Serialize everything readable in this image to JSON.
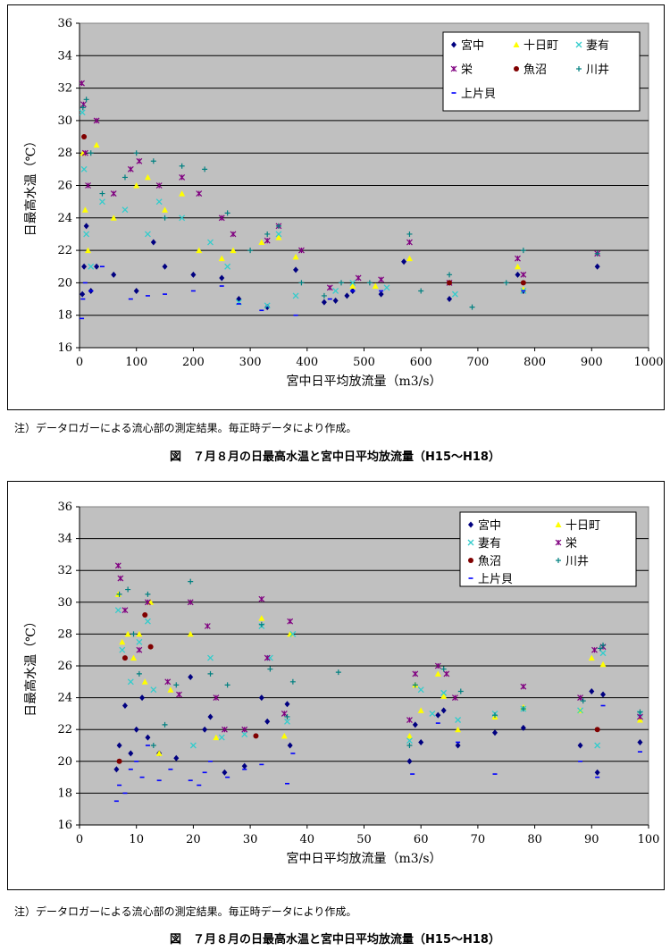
{
  "colors": {
    "plot_bg": "#c0c0c0",
    "miyanaka": "#000080",
    "tokamachi": "#ffff00",
    "tsumari": "#33cccc",
    "sakae": "#800080",
    "uonuma": "#800000",
    "kawai": "#008080",
    "kamikatagai": "#0000ff"
  },
  "note_text": "注）データロガーによる流心部の測定結果。毎正時データにより作成。",
  "chart_data": [
    {
      "type": "scatter",
      "title": "図　７月８月の日最高水温と宮中日平均放流量（H15～H18）",
      "xlabel": "宮中日平均放流量（m3/s）",
      "ylabel": "日最高水温（℃）",
      "xlim": [
        0,
        1000
      ],
      "ylim": [
        16,
        36
      ],
      "xticks": [
        "0",
        "100",
        "200",
        "300",
        "400",
        "500",
        "600",
        "700",
        "800",
        "900",
        "1000"
      ],
      "yticks": [
        "16",
        "18",
        "20",
        "22",
        "24",
        "26",
        "28",
        "30",
        "32",
        "34",
        "36"
      ],
      "grid": true,
      "legend_position": "top-right",
      "legend_columns": 3,
      "series": [
        {
          "name": "宮中",
          "marker": "diamond",
          "x": [
            5,
            8,
            12,
            20,
            30,
            60,
            100,
            130,
            150,
            200,
            250,
            280,
            330,
            380,
            430,
            450,
            470,
            480,
            530,
            570,
            650,
            770,
            780,
            910
          ],
          "y": [
            19.3,
            21.0,
            23.5,
            19.5,
            21.0,
            20.5,
            19.5,
            22.5,
            21.0,
            20.5,
            20.3,
            19.0,
            18.5,
            20.8,
            18.8,
            18.9,
            19.2,
            19.5,
            19.3,
            21.3,
            19.0,
            20.5,
            19.5,
            21.0
          ]
        },
        {
          "name": "十日町",
          "marker": "triangle",
          "x": [
            6,
            10,
            15,
            30,
            60,
            100,
            120,
            150,
            180,
            210,
            250,
            270,
            320,
            350,
            380,
            480,
            520,
            580,
            770,
            780
          ],
          "y": [
            28.0,
            24.5,
            22.0,
            28.5,
            24.0,
            26.0,
            26.5,
            24.5,
            25.5,
            22.0,
            21.5,
            22.0,
            22.5,
            22.8,
            21.6,
            19.8,
            19.8,
            21.5,
            21.0,
            19.6
          ]
        },
        {
          "name": "妻有",
          "marker": "x",
          "x": [
            5,
            8,
            12,
            20,
            40,
            80,
            120,
            140,
            180,
            230,
            260,
            280,
            330,
            350,
            380,
            450,
            480,
            540,
            660,
            780
          ],
          "y": [
            30.5,
            27.0,
            23.0,
            21.0,
            25.0,
            24.5,
            23.0,
            25.0,
            24.0,
            22.5,
            21.0,
            18.8,
            18.6,
            23.0,
            19.2,
            19.5,
            20.0,
            19.7,
            19.3,
            19.5
          ]
        },
        {
          "name": "栄",
          "marker": "star",
          "x": [
            4,
            7,
            10,
            15,
            30,
            60,
            90,
            105,
            140,
            180,
            210,
            250,
            270,
            330,
            350,
            390,
            440,
            490,
            530,
            580,
            650,
            770,
            780,
            910
          ],
          "y": [
            32.3,
            31.0,
            28.0,
            26.0,
            30.0,
            25.5,
            27.0,
            27.5,
            26.0,
            26.5,
            25.5,
            24.0,
            23.0,
            22.6,
            23.5,
            22.0,
            19.7,
            20.3,
            20.2,
            22.5,
            20.0,
            21.5,
            20.5,
            21.8
          ]
        },
        {
          "name": "魚沼",
          "marker": "circle",
          "x": [
            8,
            650,
            780
          ],
          "y": [
            29.0,
            20.0,
            20.0
          ]
        },
        {
          "name": "川井",
          "marker": "plus",
          "x": [
            6,
            12,
            20,
            40,
            80,
            100,
            130,
            150,
            180,
            220,
            260,
            300,
            330,
            350,
            390,
            430,
            460,
            510,
            580,
            600,
            650,
            690,
            750,
            780,
            910
          ],
          "y": [
            30.8,
            31.3,
            28.0,
            25.5,
            26.5,
            28.0,
            27.5,
            24.0,
            27.2,
            27.0,
            24.3,
            22.0,
            23.0,
            23.5,
            20.0,
            19.2,
            20.0,
            20.0,
            23.0,
            19.5,
            20.5,
            18.5,
            20.0,
            22.0,
            21.8
          ]
        },
        {
          "name": "上片貝",
          "marker": "dash",
          "x": [
            4,
            6,
            10,
            20,
            40,
            90,
            120,
            150,
            200,
            250,
            280,
            320,
            380,
            440,
            480,
            530,
            780
          ],
          "y": [
            17.8,
            19.0,
            20.0,
            19.5,
            21.0,
            19.0,
            19.2,
            19.3,
            19.5,
            19.8,
            18.7,
            18.3,
            18.0,
            19.0,
            19.5,
            19.5,
            19.5
          ]
        }
      ]
    },
    {
      "type": "scatter",
      "title": "図　７月８月の日最高水温と宮中日平均放流量（H15～H18）",
      "xlabel": "宮中日平均放流量（m3/s）",
      "ylabel": "日最高水温（℃）",
      "xlim": [
        0,
        100
      ],
      "ylim": [
        16,
        36
      ],
      "xticks": [
        "0",
        "10",
        "20",
        "30",
        "40",
        "50",
        "60",
        "70",
        "80",
        "90",
        "100"
      ],
      "yticks": [
        "16",
        "18",
        "20",
        "22",
        "24",
        "26",
        "28",
        "30",
        "32",
        "34",
        "36"
      ],
      "grid": true,
      "legend_position": "top-right",
      "legend_columns": 2,
      "series": [
        {
          "name": "宮中",
          "marker": "diamond",
          "x": [
            6.5,
            7,
            8,
            9,
            10,
            11,
            12,
            14,
            17,
            19.5,
            22,
            23,
            25.5,
            29,
            32,
            33,
            36.5,
            37,
            58,
            59,
            60,
            63,
            64,
            66.5,
            73,
            78,
            88,
            90,
            91,
            92,
            98.5
          ],
          "y": [
            19.5,
            21.0,
            23.5,
            20.5,
            22.0,
            24.0,
            21.5,
            20.5,
            20.2,
            25.3,
            22.0,
            22.8,
            19.3,
            19.7,
            24.0,
            22.5,
            23.6,
            21.0,
            20.0,
            22.3,
            21.2,
            22.9,
            23.2,
            21.0,
            21.8,
            22.1,
            21.0,
            24.4,
            19.3,
            24.2,
            21.2
          ]
        },
        {
          "name": "十日町",
          "marker": "triangle",
          "x": [
            6.8,
            7.5,
            8.5,
            9.5,
            10.5,
            11.5,
            12.5,
            14,
            16,
            19.5,
            24,
            32,
            36,
            37,
            58,
            59,
            60,
            63,
            64,
            66.5,
            73,
            78,
            88,
            90,
            92,
            98.5
          ],
          "y": [
            30.5,
            27.5,
            28.0,
            26.5,
            28.0,
            25.0,
            30.0,
            20.5,
            24.5,
            28.0,
            21.5,
            29.0,
            21.6,
            28.0,
            21.6,
            24.8,
            23.2,
            25.5,
            24.1,
            22.0,
            22.8,
            23.4,
            23.2,
            26.5,
            26.1,
            22.6
          ]
        },
        {
          "name": "妻有",
          "marker": "x",
          "x": [
            6.8,
            7.5,
            9,
            10.5,
            12,
            13,
            20,
            23,
            25,
            29,
            32,
            33.5,
            36.5,
            37.5,
            58,
            60,
            62,
            64,
            66.5,
            73,
            78,
            88,
            91,
            92,
            98.5
          ],
          "y": [
            29.5,
            27.0,
            25.0,
            27.5,
            28.8,
            24.5,
            21.0,
            26.5,
            21.5,
            21.7,
            28.5,
            26.5,
            22.5,
            28.0,
            21.3,
            24.5,
            23.0,
            24.3,
            22.6,
            23.0,
            23.3,
            23.2,
            21.0,
            26.8,
            23.0
          ]
        },
        {
          "name": "栄",
          "marker": "star",
          "x": [
            6.8,
            7.2,
            8,
            10.5,
            12,
            15.5,
            17.5,
            19.5,
            22.5,
            24,
            25.5,
            29,
            32,
            33,
            36,
            37,
            58,
            59,
            63,
            64.5,
            66,
            78,
            88,
            90.5,
            92,
            98.5
          ],
          "y": [
            32.3,
            31.5,
            29.5,
            27.0,
            30.0,
            25.0,
            24.2,
            30.0,
            28.5,
            24.0,
            22.0,
            22.0,
            30.2,
            26.5,
            23.0,
            28.8,
            22.6,
            25.5,
            26.0,
            25.5,
            24.0,
            24.7,
            24.0,
            27.0,
            27.2,
            22.8
          ]
        },
        {
          "name": "魚沼",
          "marker": "circle",
          "x": [
            7,
            8,
            11.5,
            12.5,
            31,
            91
          ],
          "y": [
            20.0,
            26.5,
            29.2,
            27.2,
            21.6,
            22.0
          ]
        },
        {
          "name": "川井",
          "marker": "plus",
          "x": [
            7,
            8.5,
            9.5,
            10.5,
            12,
            13,
            15,
            17,
            19.5,
            23,
            26,
            32,
            33.5,
            36.5,
            37.5,
            45.5,
            58,
            59,
            64,
            67,
            73,
            78,
            88.5,
            91.5,
            92,
            98.5
          ],
          "y": [
            30.5,
            30.8,
            28.0,
            25.5,
            30.5,
            21.0,
            22.3,
            24.8,
            31.3,
            25.5,
            24.8,
            28.6,
            25.8,
            22.8,
            25.0,
            25.6,
            21.0,
            24.8,
            25.8,
            24.4,
            22.9,
            23.3,
            23.8,
            27.1,
            27.3,
            23.1
          ]
        },
        {
          "name": "上片貝",
          "marker": "dash",
          "x": [
            6.5,
            7,
            8,
            9,
            10,
            11,
            12,
            14,
            16,
            19.5,
            21,
            22,
            23,
            26,
            29,
            32,
            36.5,
            37.5,
            58.5,
            63,
            66.5,
            73,
            88,
            91,
            92,
            98.5
          ],
          "y": [
            17.5,
            18.5,
            18.0,
            19.5,
            20.0,
            19.0,
            21.0,
            18.8,
            19.5,
            18.8,
            18.5,
            19.3,
            20.0,
            19.0,
            19.5,
            19.8,
            18.6,
            20.5,
            19.2,
            22.4,
            21.2,
            19.2,
            20.0,
            19.0,
            23.5,
            20.6
          ]
        }
      ]
    }
  ]
}
